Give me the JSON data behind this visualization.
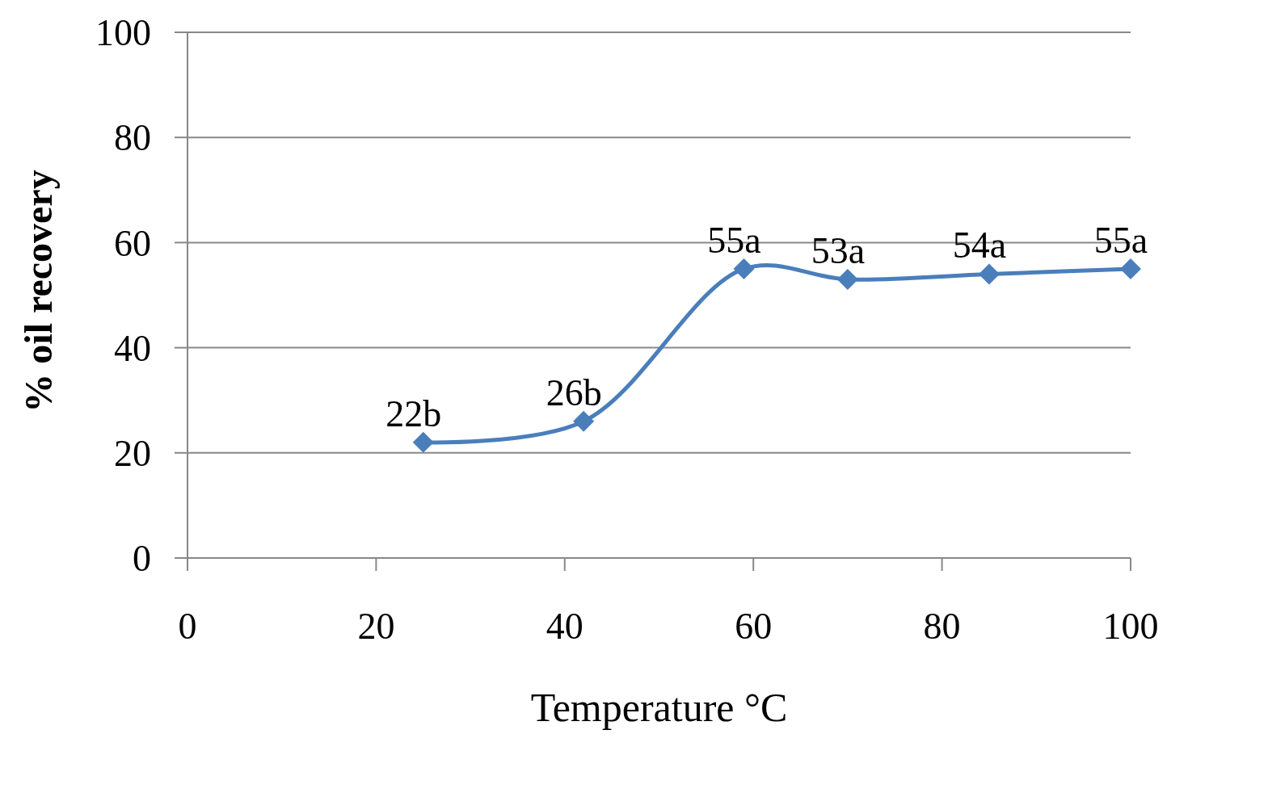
{
  "chart_data": {
    "type": "line",
    "xlabel": "Temperature °C",
    "ylabel": "% oil recovery",
    "x": [
      25,
      42,
      59,
      70,
      85,
      100
    ],
    "series": [
      {
        "color": "#4a7ebb",
        "values": [
          22,
          26,
          55,
          53,
          54,
          55
        ],
        "value_labels": [
          "22b",
          "26b",
          "55a",
          "53a",
          "54a",
          "55a"
        ]
      }
    ],
    "xlim": [
      0,
      100
    ],
    "xticks": [
      0,
      20,
      40,
      60,
      80,
      100
    ],
    "ylim": [
      0,
      100
    ],
    "yticks": [
      0,
      20,
      40,
      60,
      80,
      100
    ],
    "grid": "y",
    "marker": "diamond",
    "line_style": "solid"
  }
}
